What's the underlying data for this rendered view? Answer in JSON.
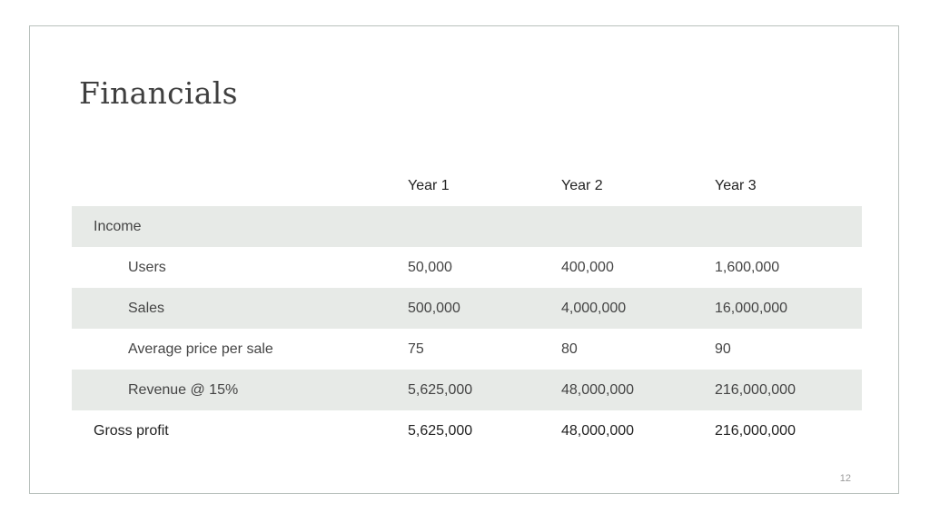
{
  "slide": {
    "title": "Financials",
    "page_number": "12"
  },
  "table": {
    "columns": [
      "",
      "Year 1",
      "Year 2",
      "Year 3"
    ],
    "rows": [
      {
        "label": "Income",
        "values": [
          "",
          "",
          ""
        ]
      },
      {
        "label": "Users",
        "values": [
          "50,000",
          "400,000",
          "1,600,000"
        ]
      },
      {
        "label": "Sales",
        "values": [
          "500,000",
          "4,000,000",
          "16,000,000"
        ]
      },
      {
        "label": "Average price per sale",
        "values": [
          "75",
          "80",
          "90"
        ]
      },
      {
        "label": "Revenue @ 15%",
        "values": [
          "5,625,000",
          "48,000,000",
          "216,000,000"
        ]
      },
      {
        "label": "Gross profit",
        "values": [
          "5,625,000",
          "48,000,000",
          "216,000,000"
        ]
      }
    ]
  }
}
